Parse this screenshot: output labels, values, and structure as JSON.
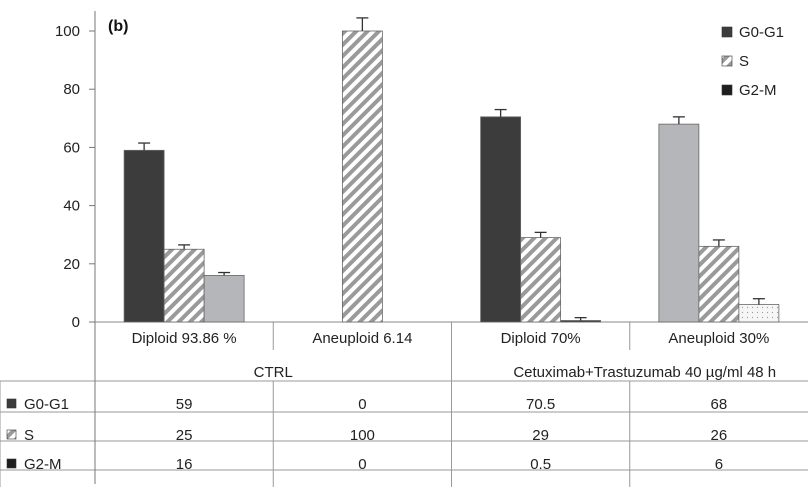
{
  "chart_data": {
    "type": "bar",
    "panel_label": "(b)",
    "categories": [
      "Diploid 93.86 %",
      "Aneuploid 6.14",
      "Diploid 70%",
      "Aneuploid 30%"
    ],
    "groups": [
      "CTRL",
      "Cetuximab+Trastuzumab 40 µg/ml 48 h"
    ],
    "group_membership": [
      0,
      0,
      1,
      1
    ],
    "series": [
      {
        "name": "G0-G1",
        "values": [
          59,
          0,
          70.5,
          68
        ],
        "errors": [
          2.5,
          0,
          2.5,
          2.5
        ],
        "colors": [
          "#3c3c3c",
          "#3c3c3c",
          "#3c3c3c",
          "#b4b6b9"
        ],
        "pattern": "solid"
      },
      {
        "name": "S",
        "values": [
          25,
          100,
          29,
          26
        ],
        "errors": [
          1.5,
          4.5,
          1.8,
          2.2
        ],
        "colors": [
          "#9a9a9a",
          "#9a9a9a",
          "#9a9a9a",
          "#9a9a9a"
        ],
        "pattern": "hatch"
      },
      {
        "name": "G2-M",
        "values": [
          16,
          0,
          0.5,
          6
        ],
        "errors": [
          1,
          0,
          1,
          2
        ],
        "colors": [
          "#b4b6b9",
          "#b4b6b9",
          "#3c3c3c",
          "#f4f4f4"
        ],
        "pattern": "mixed"
      }
    ],
    "ylim": [
      0,
      100
    ],
    "yticks": [
      0,
      20,
      40,
      60,
      80,
      100
    ],
    "legend_position": "top-right",
    "table": {
      "rows": [
        {
          "label": "G0-G1",
          "cells": [
            "59",
            "0",
            "70.5",
            "68"
          ]
        },
        {
          "label": "S",
          "cells": [
            "25",
            "100",
            "29",
            "26"
          ]
        },
        {
          "label": "G2-M",
          "cells": [
            "16",
            "0",
            "0.5",
            "6"
          ]
        }
      ]
    }
  }
}
